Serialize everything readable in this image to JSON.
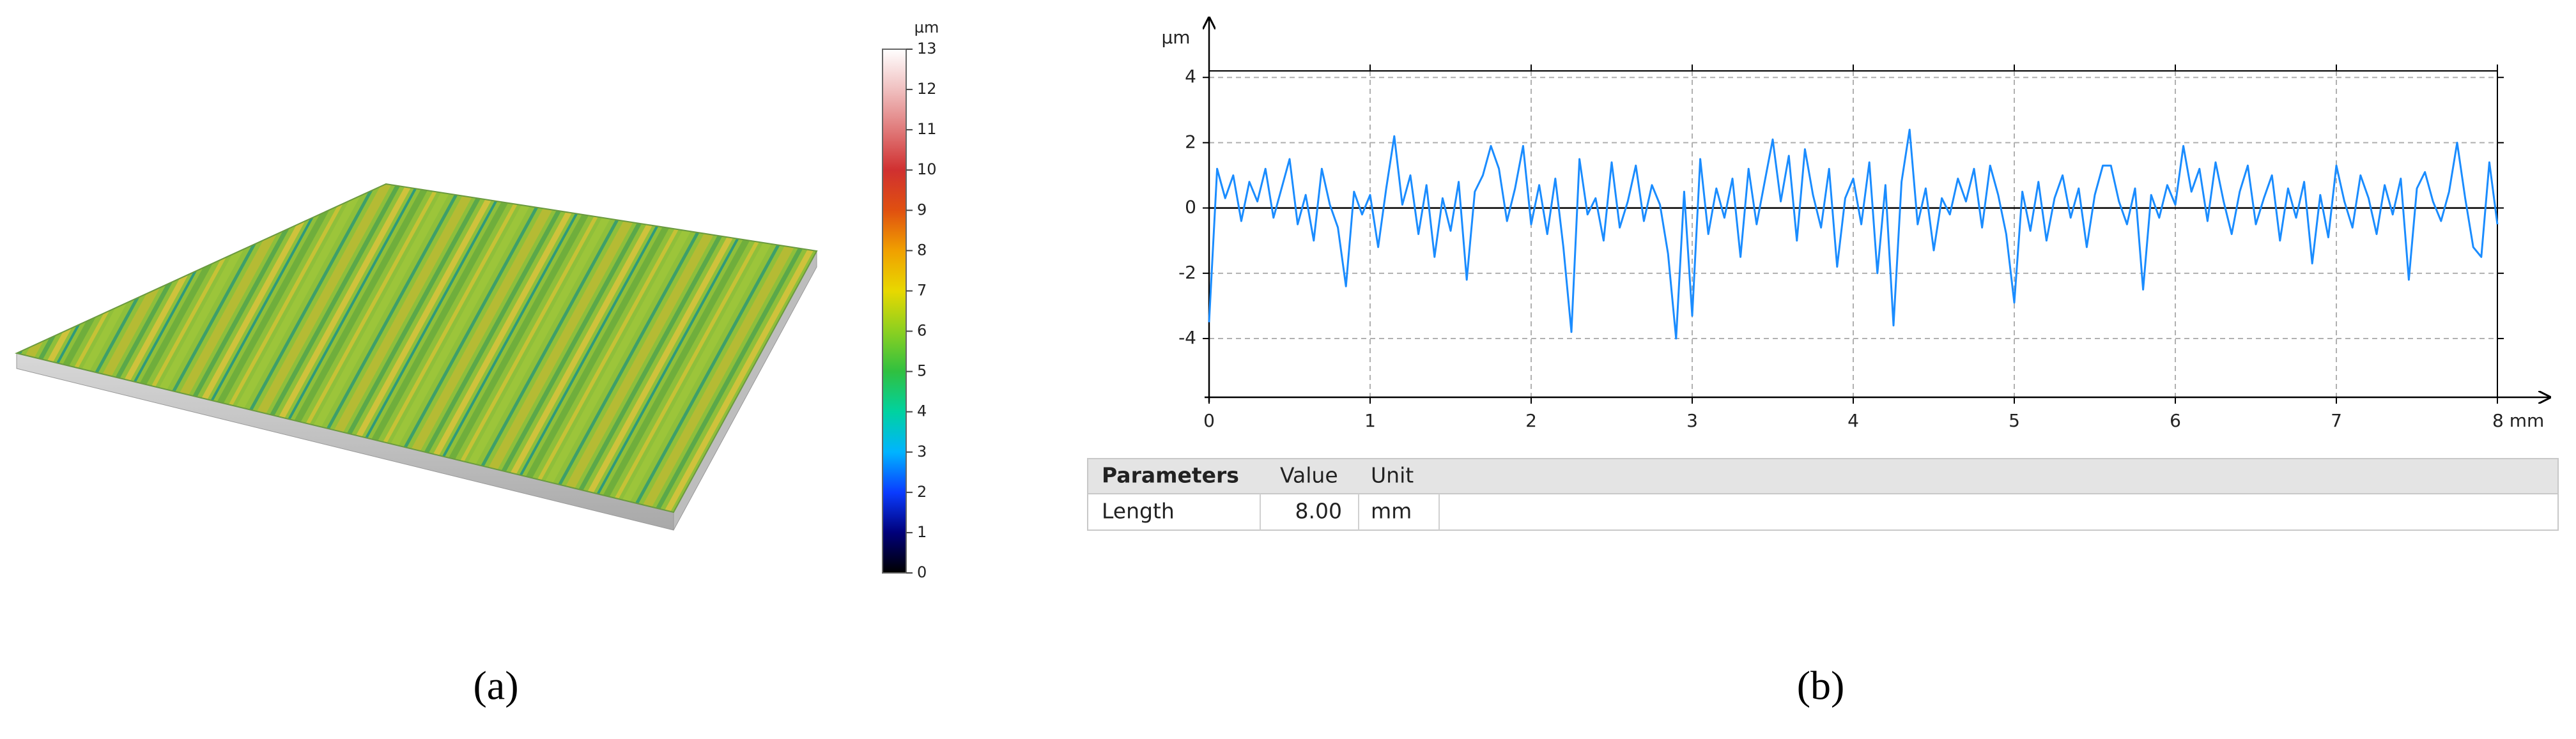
{
  "chart_data": [
    {
      "type": "surface",
      "unit": "µm",
      "ylim": [
        0,
        13
      ],
      "yticks": [
        0,
        1,
        2,
        3,
        4,
        5,
        6,
        7,
        8,
        9,
        10,
        11,
        12,
        13
      ],
      "colormap": [
        "#000000",
        "#00007a",
        "#0a3cff",
        "#00b4ff",
        "#00d2a0",
        "#30c040",
        "#8cd020",
        "#e8d800",
        "#f0a000",
        "#e05010",
        "#d03030",
        "#e07a7a",
        "#f0c0c0",
        "#ffffff"
      ]
    },
    {
      "type": "line",
      "y_label": "µm",
      "color": "#1a8cff",
      "grid": true,
      "xlim": [
        0,
        8
      ],
      "ylim": [
        -5.8,
        4.2
      ],
      "xticks": [
        0,
        1,
        2,
        3,
        4,
        5,
        6,
        7,
        {
          "value": 8,
          "label": "8 mm"
        }
      ],
      "yticks": [
        -4,
        -2,
        0,
        2,
        4
      ],
      "x": [
        0,
        0.05,
        0.1,
        0.15,
        0.2,
        0.25,
        0.3,
        0.35,
        0.4,
        0.45,
        0.5,
        0.55,
        0.6,
        0.65,
        0.7,
        0.75,
        0.8,
        0.85,
        0.9,
        0.95,
        1,
        1.05,
        1.1,
        1.15,
        1.2,
        1.25,
        1.3,
        1.35,
        1.4,
        1.45,
        1.5,
        1.55,
        1.6,
        1.65,
        1.7,
        1.75,
        1.8,
        1.85,
        1.9,
        1.95,
        2,
        2.05,
        2.1,
        2.15,
        2.2,
        2.25,
        2.3,
        2.35,
        2.4,
        2.45,
        2.5,
        2.55,
        2.6,
        2.65,
        2.7,
        2.75,
        2.8,
        2.85,
        2.9,
        2.95,
        3,
        3.05,
        3.1,
        3.15,
        3.2,
        3.25,
        3.3,
        3.35,
        3.4,
        3.45,
        3.5,
        3.55,
        3.6,
        3.65,
        3.7,
        3.75,
        3.8,
        3.85,
        3.9,
        3.95,
        4,
        4.05,
        4.1,
        4.15,
        4.2,
        4.25,
        4.3,
        4.35,
        4.4,
        4.45,
        4.5,
        4.55,
        4.6,
        4.65,
        4.7,
        4.75,
        4.8,
        4.85,
        4.9,
        4.95,
        5,
        5.05,
        5.1,
        5.15,
        5.2,
        5.25,
        5.3,
        5.35,
        5.4,
        5.45,
        5.5,
        5.55,
        5.6,
        5.65,
        5.7,
        5.75,
        5.8,
        5.85,
        5.9,
        5.95,
        6,
        6.05,
        6.1,
        6.15,
        6.2,
        6.25,
        6.3,
        6.35,
        6.4,
        6.45,
        6.5,
        6.55,
        6.6,
        6.65,
        6.7,
        6.75,
        6.8,
        6.85,
        6.9,
        6.95,
        7,
        7.05,
        7.1,
        7.15,
        7.2,
        7.25,
        7.3,
        7.35,
        7.4,
        7.45,
        7.5,
        7.55,
        7.6,
        7.65,
        7.7,
        7.75,
        7.8,
        7.85,
        7.9,
        7.95,
        8
      ],
      "values": [
        -3.5,
        1.2,
        0.3,
        1.0,
        -0.4,
        0.8,
        0.2,
        1.2,
        -0.3,
        0.6,
        1.5,
        -0.5,
        0.4,
        -1.0,
        1.2,
        0.1,
        -0.6,
        -2.4,
        0.5,
        -0.2,
        0.4,
        -1.2,
        0.6,
        2.2,
        0.1,
        1.0,
        -0.8,
        0.7,
        -1.5,
        0.3,
        -0.7,
        0.8,
        -2.2,
        0.5,
        1.0,
        1.9,
        1.2,
        -0.4,
        0.6,
        1.9,
        -0.5,
        0.7,
        -0.8,
        0.9,
        -1.2,
        -3.8,
        1.5,
        -0.2,
        0.3,
        -1.0,
        1.4,
        -0.6,
        0.2,
        1.3,
        -0.4,
        0.7,
        0.1,
        -1.4,
        -4.0,
        0.5,
        -3.3,
        1.5,
        -0.8,
        0.6,
        -0.3,
        0.9,
        -1.5,
        1.2,
        -0.5,
        0.8,
        2.1,
        0.2,
        1.6,
        -1.0,
        1.8,
        0.4,
        -0.6,
        1.2,
        -1.8,
        0.3,
        0.9,
        -0.5,
        1.4,
        -2.0,
        0.7,
        -3.6,
        0.8,
        2.4,
        -0.5,
        0.6,
        -1.3,
        0.3,
        -0.2,
        0.9,
        0.2,
        1.2,
        -0.6,
        1.3,
        0.4,
        -0.8,
        -2.9,
        0.5,
        -0.7,
        0.8,
        -1.0,
        0.3,
        1.0,
        -0.3,
        0.6,
        -1.2,
        0.4,
        1.3,
        1.3,
        0.2,
        -0.5,
        0.6,
        -2.5,
        0.4,
        -0.3,
        0.7,
        0.1,
        1.9,
        0.5,
        1.2,
        -0.4,
        1.4,
        0.2,
        -0.8,
        0.5,
        1.3,
        -0.5,
        0.3,
        1.0,
        -1.0,
        0.6,
        -0.3,
        0.8,
        -1.7,
        0.4,
        -0.9,
        1.3,
        0.2,
        -0.6,
        1.0,
        0.3,
        -0.8,
        0.7,
        -0.2,
        0.9,
        -2.2,
        0.6,
        1.1,
        0.2,
        -0.4,
        0.5,
        2.0,
        0.3,
        -1.2,
        -1.5,
        1.4,
        -0.5
      ]
    }
  ],
  "table": {
    "columns": [
      "Parameters",
      "Value",
      "Unit"
    ],
    "rows": [
      [
        "Length",
        "8.00",
        "mm"
      ]
    ]
  },
  "panel_labels": [
    "(a)",
    "(b)"
  ]
}
